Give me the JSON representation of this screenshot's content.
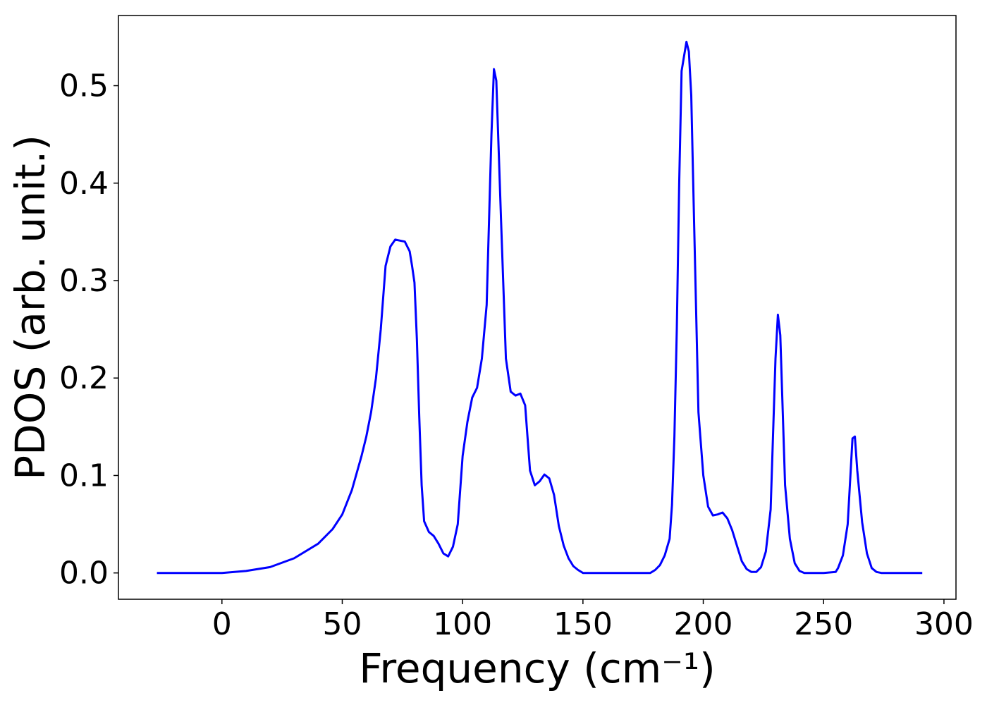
{
  "chart_data": {
    "type": "line",
    "title": "",
    "xlabel": "Frequency (cm⁻¹)",
    "ylabel": "PDOS (arb. unit.)",
    "xlim": [
      -43,
      305
    ],
    "ylim": [
      -0.027,
      0.572
    ],
    "xticks": [
      0,
      50,
      100,
      150,
      200,
      250,
      300
    ],
    "yticks": [
      0.0,
      0.1,
      0.2,
      0.3,
      0.4,
      0.5
    ],
    "ytick_labels": [
      "0.0",
      "0.1",
      "0.2",
      "0.3",
      "0.4",
      "0.5"
    ],
    "grid": false,
    "legend": "none",
    "series": [
      {
        "color": "#0000ff",
        "x": [
          -27,
          -10,
          0,
          10,
          20,
          30,
          40,
          46,
          50,
          54,
          58,
          60,
          62,
          64,
          66,
          68,
          70,
          72,
          74,
          76,
          78,
          79,
          80,
          81,
          82,
          83,
          84,
          86,
          88,
          90,
          92,
          94,
          96,
          98,
          100,
          102,
          104,
          106,
          108,
          110,
          112,
          113,
          114,
          116,
          118,
          120,
          122,
          124,
          126,
          128,
          130,
          132,
          134,
          136,
          138,
          140,
          142,
          144,
          146,
          148,
          150,
          155,
          160,
          170,
          178,
          180,
          182,
          184,
          186,
          187,
          188,
          189,
          190,
          191,
          192,
          193,
          194,
          195,
          196,
          198,
          200,
          202,
          204,
          206,
          208,
          210,
          212,
          214,
          216,
          218,
          220,
          222,
          224,
          226,
          228,
          230,
          231,
          232,
          234,
          236,
          238,
          240,
          242,
          244,
          250,
          255,
          256,
          258,
          260,
          262,
          263,
          264,
          266,
          268,
          270,
          272,
          274,
          280,
          291
        ],
        "y": [
          0.0,
          0.0,
          0.0,
          0.002,
          0.006,
          0.015,
          0.03,
          0.045,
          0.06,
          0.085,
          0.12,
          0.14,
          0.165,
          0.2,
          0.25,
          0.315,
          0.335,
          0.342,
          0.341,
          0.34,
          0.33,
          0.315,
          0.298,
          0.24,
          0.16,
          0.09,
          0.053,
          0.042,
          0.038,
          0.03,
          0.02,
          0.017,
          0.027,
          0.05,
          0.12,
          0.155,
          0.18,
          0.19,
          0.22,
          0.275,
          0.45,
          0.517,
          0.505,
          0.36,
          0.22,
          0.186,
          0.182,
          0.184,
          0.172,
          0.105,
          0.09,
          0.094,
          0.101,
          0.097,
          0.08,
          0.048,
          0.028,
          0.015,
          0.007,
          0.003,
          0.0,
          0.0,
          0.0,
          0.0,
          0.0,
          0.003,
          0.008,
          0.018,
          0.035,
          0.07,
          0.14,
          0.25,
          0.4,
          0.515,
          0.53,
          0.545,
          0.535,
          0.49,
          0.38,
          0.165,
          0.1,
          0.068,
          0.059,
          0.06,
          0.062,
          0.056,
          0.044,
          0.028,
          0.012,
          0.004,
          0.001,
          0.001,
          0.006,
          0.022,
          0.065,
          0.22,
          0.265,
          0.244,
          0.09,
          0.035,
          0.01,
          0.002,
          0.0,
          0.0,
          0.0,
          0.001,
          0.005,
          0.018,
          0.05,
          0.138,
          0.14,
          0.105,
          0.052,
          0.02,
          0.005,
          0.001,
          0.0,
          0.0,
          0.0
        ]
      }
    ]
  }
}
